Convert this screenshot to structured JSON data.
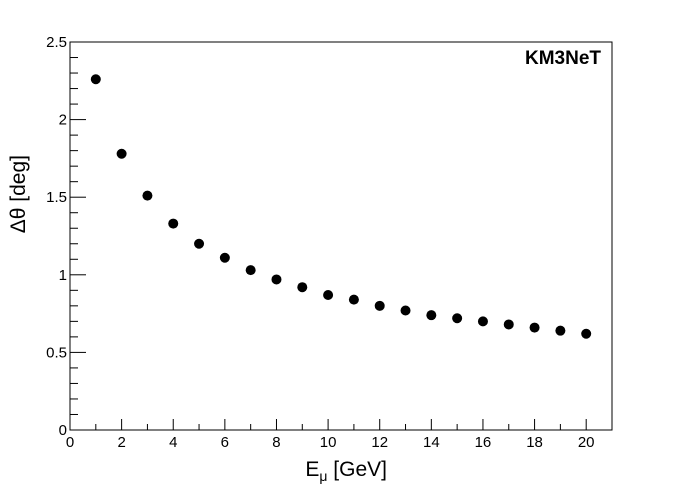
{
  "chart_data": {
    "type": "scatter",
    "title": "",
    "annotation": "KM3NeT",
    "xlabel_main": "E",
    "xlabel_sub": "μ",
    "xlabel_unit": " [GeV]",
    "ylabel": "Δθ [deg]",
    "xlim": [
      0,
      21
    ],
    "ylim": [
      0,
      2.5
    ],
    "xticks": [
      "0",
      "2",
      "4",
      "6",
      "8",
      "10",
      "12",
      "14",
      "16",
      "18",
      "20"
    ],
    "yticks": [
      "0",
      "0.5",
      "1",
      "1.5",
      "2",
      "2.5"
    ],
    "grid": false,
    "marker_color": "#000000",
    "series": [
      {
        "x": [
          1,
          2,
          3,
          4,
          5,
          6,
          7,
          8,
          9,
          10,
          11,
          12,
          13,
          14,
          15,
          16,
          17,
          18,
          19,
          20
        ],
        "y": [
          2.26,
          1.78,
          1.51,
          1.33,
          1.2,
          1.11,
          1.03,
          0.97,
          0.92,
          0.87,
          0.84,
          0.8,
          0.77,
          0.74,
          0.72,
          0.7,
          0.68,
          0.66,
          0.64,
          0.62
        ]
      }
    ]
  }
}
